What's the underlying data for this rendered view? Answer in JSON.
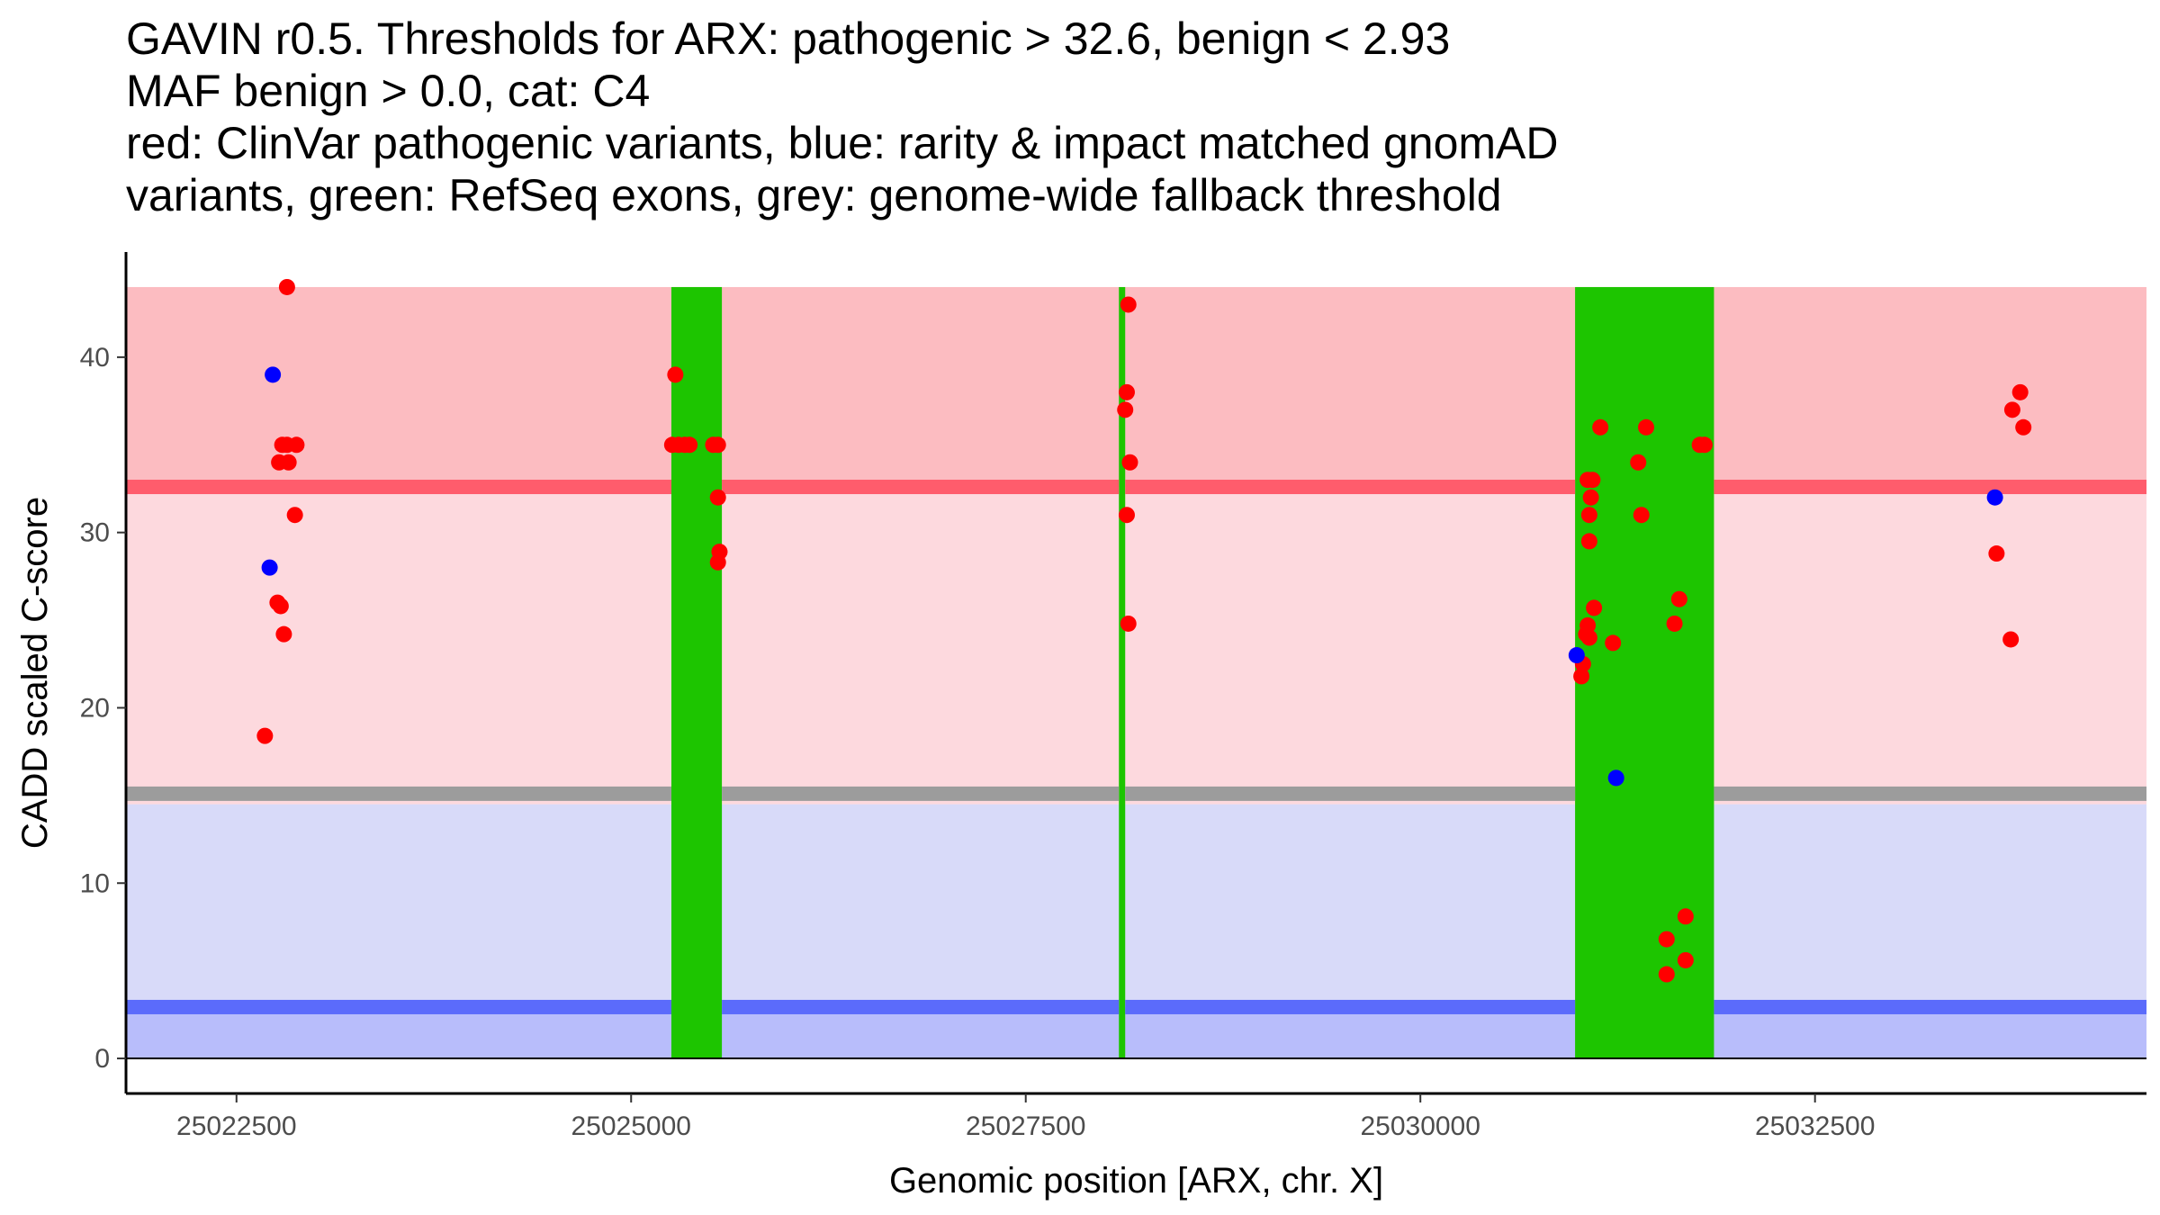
{
  "chart_data": {
    "type": "scatter",
    "title_lines": [
      "GAVIN r0.5. Thresholds for ARX: pathogenic > 32.6, benign < 2.93",
      "MAF benign > 0.0, cat: C4",
      "red: ClinVar pathogenic variants, blue: rarity & impact matched gnomAD",
      "variants, green: RefSeq exons, grey: genome-wide fallback threshold"
    ],
    "xlabel": "Genomic position [ARX, chr. X]",
    "ylabel": "CADD scaled C-score",
    "xlim": [
      21800,
      34600
    ],
    "ylim": [
      -2,
      46
    ],
    "xticks": [
      22500,
      25000,
      27500,
      30000,
      32500
    ],
    "xtick_labels": [
      "25022500",
      "25025000",
      "25027500",
      "25030000",
      "25032500"
    ],
    "yticks": [
      0,
      10,
      20,
      30,
      40
    ],
    "ytick_labels": [
      "0",
      "10",
      "20",
      "30",
      "40"
    ],
    "bands": [
      {
        "name": "benign-region",
        "y0": 0,
        "y1": 2.93,
        "color": "#b8bdfb"
      },
      {
        "name": "grey-benign-region",
        "y0": 2.93,
        "y1": 14.5,
        "color": "#d8daf9"
      },
      {
        "name": "intermediate-region",
        "y0": 14.5,
        "y1": 32.6,
        "color": "#fdd9de"
      },
      {
        "name": "pathogenic-region",
        "y0": 32.6,
        "y1": 44,
        "color": "#fcbcc1"
      }
    ],
    "threshold_lines": [
      {
        "name": "benign-threshold",
        "y": 2.93,
        "color": "#5b6bfb"
      },
      {
        "name": "fallback-threshold",
        "y": 15.1,
        "color": "#9c9c9c"
      },
      {
        "name": "pathogenic-threshold",
        "y": 32.6,
        "color": "#ff5c6c"
      }
    ],
    "exons": [
      {
        "x0": 25255,
        "x1": 25575
      },
      {
        "x0": 28090,
        "x1": 28130
      },
      {
        "x0": 30980,
        "x1": 31860
      }
    ],
    "exon_color": "#1dc500",
    "series": [
      {
        "name": "ClinVar pathogenic",
        "color": "#ff0000",
        "points": [
          [
            22820,
            44.0
          ],
          [
            22790,
            35.0
          ],
          [
            22820,
            35.0
          ],
          [
            22880,
            35.0
          ],
          [
            22770,
            34.0
          ],
          [
            22830,
            34.0
          ],
          [
            22870,
            31.0
          ],
          [
            22760,
            26.0
          ],
          [
            22780,
            25.8
          ],
          [
            22800,
            24.2
          ],
          [
            22680,
            18.4
          ],
          [
            25280,
            39.0
          ],
          [
            25260,
            35.0
          ],
          [
            25300,
            35.0
          ],
          [
            25340,
            35.0
          ],
          [
            25370,
            35.0
          ],
          [
            25520,
            35.0
          ],
          [
            25550,
            35.0
          ],
          [
            25550,
            32.0
          ],
          [
            25560,
            28.9
          ],
          [
            25550,
            28.3
          ],
          [
            28150,
            43.0
          ],
          [
            28140,
            38.0
          ],
          [
            28130,
            37.0
          ],
          [
            28160,
            34.0
          ],
          [
            28140,
            31.0
          ],
          [
            28150,
            24.8
          ],
          [
            31140,
            36.0
          ],
          [
            31430,
            36.0
          ],
          [
            31060,
            33.0
          ],
          [
            31090,
            33.0
          ],
          [
            31080,
            32.0
          ],
          [
            31070,
            31.0
          ],
          [
            31380,
            34.0
          ],
          [
            31400,
            31.0
          ],
          [
            31070,
            29.5
          ],
          [
            31100,
            25.7
          ],
          [
            31060,
            24.7
          ],
          [
            31050,
            24.2
          ],
          [
            31070,
            24.0
          ],
          [
            31220,
            23.7
          ],
          [
            31030,
            22.5
          ],
          [
            31020,
            21.8
          ],
          [
            31640,
            26.2
          ],
          [
            31610,
            24.8
          ],
          [
            31770,
            35.0
          ],
          [
            31800,
            35.0
          ],
          [
            31680,
            8.1
          ],
          [
            31560,
            6.8
          ],
          [
            31680,
            5.6
          ],
          [
            31560,
            4.8
          ],
          [
            33650,
            28.8
          ],
          [
            33750,
            37.0
          ],
          [
            33800,
            38.0
          ],
          [
            33820,
            36.0
          ],
          [
            33740,
            23.9
          ]
        ]
      },
      {
        "name": "gnomAD matched",
        "color": "#0000ff",
        "points": [
          [
            22730,
            39.0
          ],
          [
            22710,
            28.0
          ],
          [
            30990,
            23.0
          ],
          [
            31240,
            16.0
          ],
          [
            33640,
            32.0
          ]
        ]
      }
    ]
  }
}
